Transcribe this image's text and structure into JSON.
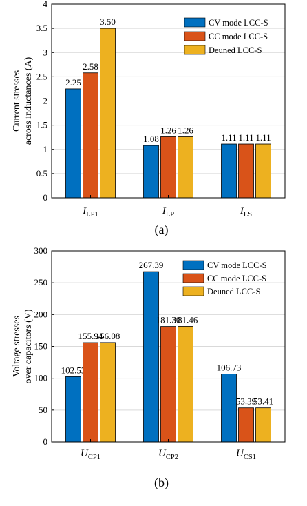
{
  "colors": {
    "cv": "#0070C0",
    "cc": "#D95319",
    "detuned": "#EDB120",
    "grid": "#d9d9d9",
    "axis": "#000000"
  },
  "chart_data": [
    {
      "type": "bar",
      "caption": "(a)",
      "ylabel_lines": [
        "Current stresses",
        "across inductances (A)"
      ],
      "categories": [
        {
          "main": "I",
          "sub": "LP1"
        },
        {
          "main": "I",
          "sub": "LP"
        },
        {
          "main": "I",
          "sub": "LS"
        }
      ],
      "series": [
        {
          "name": "CV mode LCC-S",
          "color_key": "cv",
          "values": [
            2.25,
            1.08,
            1.11
          ],
          "labels": [
            "2.25",
            "1.08",
            "1.11"
          ]
        },
        {
          "name": "CC mode LCC-S",
          "color_key": "cc",
          "values": [
            2.58,
            1.26,
            1.11
          ],
          "labels": [
            "2.58",
            "1.26",
            "1.11"
          ]
        },
        {
          "name": "Deuned LCC-S",
          "color_key": "detuned",
          "values": [
            3.5,
            1.26,
            1.11
          ],
          "labels": [
            "3.50",
            "1.26",
            "1.11"
          ]
        }
      ],
      "ylim": [
        0,
        4
      ],
      "yticks": [
        0,
        0.5,
        1,
        1.5,
        2,
        2.5,
        3,
        3.5,
        4
      ],
      "ytick_labels": [
        "0",
        "0.5",
        "1",
        "1.5",
        "2",
        "2.5",
        "3",
        "3.5",
        "4"
      ],
      "grid": true,
      "legend_position": "top-right"
    },
    {
      "type": "bar",
      "caption": "(b)",
      "ylabel_lines": [
        "Voltage stresses",
        "over capacitors (V)"
      ],
      "categories": [
        {
          "main": "U",
          "sub": "CP1"
        },
        {
          "main": "U",
          "sub": "CP2"
        },
        {
          "main": "U",
          "sub": "CS1"
        }
      ],
      "series": [
        {
          "name": "CV mode LCC-S",
          "color_key": "cv",
          "values": [
            102.53,
            267.39,
            106.73
          ],
          "labels": [
            "102.53",
            "267.39",
            "106.73"
          ]
        },
        {
          "name": "CC mode LCC-S",
          "color_key": "cc",
          "values": [
            155.94,
            181.3,
            53.39
          ],
          "labels": [
            "155.94",
            "181.30",
            "53.39"
          ]
        },
        {
          "name": "Deuned LCC-S",
          "color_key": "detuned",
          "values": [
            156.08,
            181.46,
            53.41
          ],
          "labels": [
            "156.08",
            "181.46",
            "53.41"
          ]
        }
      ],
      "ylim": [
        0,
        300
      ],
      "yticks": [
        0,
        50,
        100,
        150,
        200,
        250,
        300
      ],
      "ytick_labels": [
        "0",
        "50",
        "100",
        "150",
        "200",
        "250",
        "300"
      ],
      "grid": true,
      "legend_position": "top-right"
    }
  ]
}
